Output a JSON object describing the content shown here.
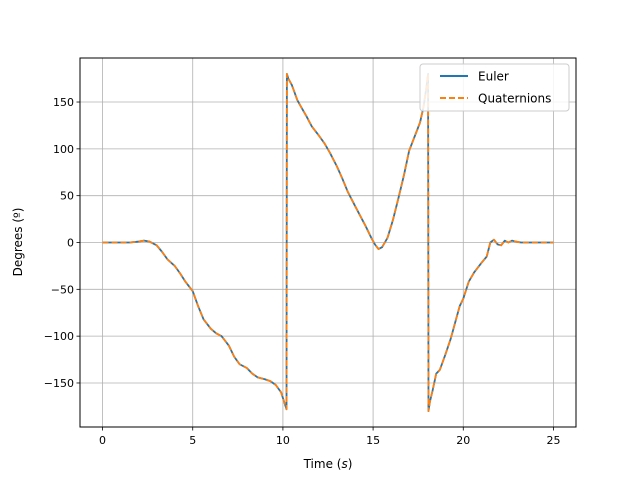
{
  "chart_data": {
    "type": "line",
    "title": "",
    "xlabel": "Time",
    "xlabel_unit": "s",
    "ylabel": "Degrees (º)",
    "xlim": [
      -1.25,
      26.25
    ],
    "ylim": [
      -197,
      197
    ],
    "xticks": [
      0,
      5,
      10,
      15,
      20,
      25
    ],
    "yticks": [
      -150,
      -100,
      -50,
      0,
      50,
      100,
      150
    ],
    "xtick_labels": [
      "0",
      "5",
      "10",
      "15",
      "20",
      "25"
    ],
    "ytick_labels": [
      "−150",
      "−100",
      "−50",
      "0",
      "50",
      "100",
      "150"
    ],
    "grid": true,
    "legend_position": "top-right",
    "series": [
      {
        "name": "Euler",
        "color": "#1f77b4",
        "style": "solid",
        "x": [
          0,
          0.5,
          1,
          1.5,
          2,
          2.3,
          2.6,
          3,
          3.3,
          3.6,
          4,
          4.3,
          4.6,
          5,
          5.3,
          5.6,
          6,
          6.3,
          6.6,
          7,
          7.3,
          7.6,
          8,
          8.3,
          8.6,
          9,
          9.3,
          9.6,
          9.9,
          10.1,
          10.2,
          10.22,
          10.3,
          10.5,
          10.8,
          11,
          11.3,
          11.6,
          12,
          12.3,
          12.6,
          13,
          13.3,
          13.6,
          14,
          14.3,
          14.6,
          14.9,
          15.1,
          15.3,
          15.5,
          15.8,
          16.1,
          16.4,
          16.7,
          17,
          17.2,
          17.4,
          17.6,
          17.8,
          17.95,
          18.05,
          18.07,
          18.15,
          18.3,
          18.5,
          18.7,
          19,
          19.3,
          19.6,
          19.8,
          20,
          20.3,
          20.6,
          21,
          21.3,
          21.5,
          21.7,
          21.9,
          22.1,
          22.3,
          22.5,
          22.7,
          22.9,
          23.2,
          23.5,
          24,
          24.5,
          25
        ],
        "y": [
          0,
          0,
          0,
          0,
          1,
          2,
          1,
          -3,
          -10,
          -18,
          -25,
          -33,
          -42,
          -52,
          -68,
          -82,
          -92,
          -97,
          -100,
          -110,
          -122,
          -130,
          -134,
          -140,
          -144,
          -146,
          -148,
          -152,
          -160,
          -172,
          -178,
          180,
          175,
          168,
          152,
          145,
          135,
          124,
          114,
          106,
          96,
          81,
          68,
          54,
          39,
          28,
          17,
          5,
          -2,
          -7,
          -5,
          5,
          24,
          47,
          71,
          98,
          108,
          118,
          128,
          145,
          165,
          180,
          -180,
          -170,
          -158,
          -140,
          -136,
          -120,
          -103,
          -82,
          -68,
          -60,
          -42,
          -32,
          -22,
          -15,
          0,
          3,
          -2,
          -3,
          2,
          0,
          2,
          1,
          0,
          0,
          0,
          0,
          0
        ]
      },
      {
        "name": "Quaternions",
        "color": "#ff7f0e",
        "style": "dashed",
        "x": [
          0,
          0.5,
          1,
          1.5,
          2,
          2.3,
          2.6,
          3,
          3.3,
          3.6,
          4,
          4.3,
          4.6,
          5,
          5.3,
          5.6,
          6,
          6.3,
          6.6,
          7,
          7.3,
          7.6,
          8,
          8.3,
          8.6,
          9,
          9.3,
          9.6,
          9.9,
          10.1,
          10.2,
          10.22,
          10.3,
          10.5,
          10.8,
          11,
          11.3,
          11.6,
          12,
          12.3,
          12.6,
          13,
          13.3,
          13.6,
          14,
          14.3,
          14.6,
          14.9,
          15.1,
          15.3,
          15.5,
          15.8,
          16.1,
          16.4,
          16.7,
          17,
          17.2,
          17.4,
          17.6,
          17.8,
          17.95,
          18.05,
          18.07,
          18.15,
          18.3,
          18.5,
          18.7,
          19,
          19.3,
          19.6,
          19.8,
          20,
          20.3,
          20.6,
          21,
          21.3,
          21.5,
          21.7,
          21.9,
          22.1,
          22.3,
          22.5,
          22.7,
          22.9,
          23.2,
          23.5,
          24,
          24.5,
          25
        ],
        "y": [
          0,
          0,
          0,
          0,
          1,
          2,
          1,
          -3,
          -10,
          -18,
          -25,
          -33,
          -42,
          -52,
          -68,
          -82,
          -92,
          -97,
          -100,
          -110,
          -122,
          -130,
          -134,
          -140,
          -144,
          -146,
          -148,
          -152,
          -160,
          -172,
          -178,
          180,
          175,
          168,
          152,
          145,
          135,
          124,
          114,
          106,
          96,
          81,
          68,
          54,
          39,
          28,
          17,
          5,
          -2,
          -7,
          -5,
          5,
          24,
          47,
          71,
          98,
          108,
          118,
          128,
          145,
          165,
          180,
          -180,
          -170,
          -158,
          -140,
          -136,
          -120,
          -103,
          -82,
          -68,
          -60,
          -42,
          -32,
          -22,
          -15,
          0,
          3,
          -2,
          -3,
          2,
          0,
          2,
          1,
          0,
          0,
          0,
          0,
          0
        ]
      }
    ]
  }
}
